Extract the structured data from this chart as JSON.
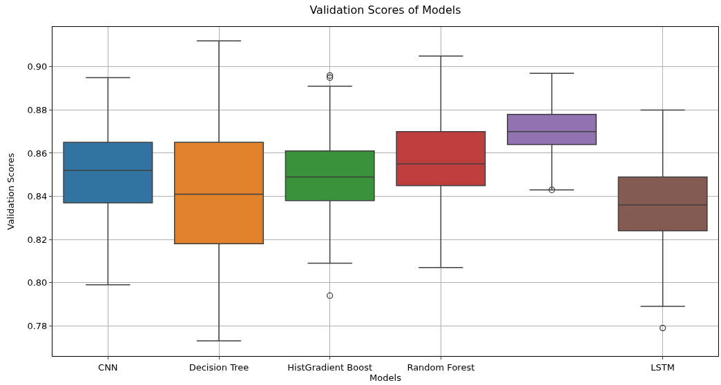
{
  "chart_data": {
    "type": "box",
    "title": "Validation Scores of Models",
    "xlabel": "Models",
    "ylabel": "Validation Scores",
    "categories": [
      "CNN",
      "Decision Tree",
      "HistGradient Boost",
      "Random Forest",
      null,
      "LSTM"
    ],
    "colors": [
      "#3274a1",
      "#e1812c",
      "#3a923a",
      "#c03d3e",
      "#9372b2",
      "#845b53"
    ],
    "boxes": [
      {
        "low": 0.799,
        "q1": 0.837,
        "median": 0.852,
        "q3": 0.865,
        "high": 0.895
      },
      {
        "low": 0.773,
        "q1": 0.818,
        "median": 0.841,
        "q3": 0.865,
        "high": 0.912
      },
      {
        "low": 0.809,
        "q1": 0.838,
        "median": 0.849,
        "q3": 0.861,
        "high": 0.891,
        "outliers": [
          0.896,
          0.895,
          0.794
        ]
      },
      {
        "low": 0.807,
        "q1": 0.845,
        "median": 0.855,
        "q3": 0.87,
        "high": 0.905
      },
      {
        "low": 0.843,
        "q1": 0.864,
        "median": 0.87,
        "q3": 0.878,
        "high": 0.897,
        "outliers": [
          0.843
        ]
      },
      {
        "low": 0.789,
        "q1": 0.824,
        "median": 0.836,
        "q3": 0.849,
        "high": 0.88,
        "outliers": [
          0.779
        ]
      }
    ],
    "ylim": [
      0.766,
      0.9185
    ],
    "yticks": [
      0.78,
      {
        "value": 0.8,
        "label": "0.80"
      },
      0.82,
      0.84,
      0.86,
      0.88,
      {
        "value": 0.9,
        "label": "0.90"
      }
    ],
    "grid": true
  }
}
